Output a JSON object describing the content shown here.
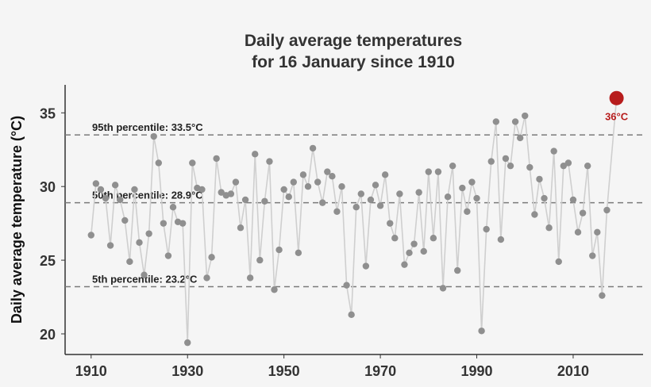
{
  "chart_data": {
    "type": "line",
    "title": [
      "Daily average temperatures",
      "for 16 January since 1910"
    ],
    "xlabel": "",
    "ylabel": "Daily average temperature (°C)",
    "xlim": [
      1904.6,
      2024.5
    ],
    "ylim": [
      18.6,
      36.9
    ],
    "xticks": [
      1910,
      1930,
      1950,
      1970,
      1990,
      2010
    ],
    "yticks": [
      20,
      25,
      30,
      35
    ],
    "grid": false,
    "colors": {
      "line": "#cfcfcf",
      "point": "#8f8f8f",
      "highlight": "#b71c1c",
      "reference": "#7a7a7a",
      "background": "#f5f5f5"
    },
    "x": [
      1910,
      1911,
      1912,
      1913,
      1914,
      1915,
      1916,
      1917,
      1918,
      1919,
      1920,
      1921,
      1922,
      1923,
      1924,
      1925,
      1926,
      1927,
      1928,
      1929,
      1930,
      1931,
      1932,
      1933,
      1934,
      1935,
      1936,
      1937,
      1938,
      1939,
      1940,
      1941,
      1942,
      1943,
      1944,
      1945,
      1946,
      1947,
      1948,
      1949,
      1950,
      1951,
      1952,
      1953,
      1954,
      1955,
      1956,
      1957,
      1958,
      1959,
      1960,
      1961,
      1962,
      1963,
      1964,
      1965,
      1966,
      1967,
      1968,
      1969,
      1970,
      1971,
      1972,
      1973,
      1974,
      1975,
      1976,
      1977,
      1978,
      1979,
      1980,
      1981,
      1982,
      1983,
      1984,
      1985,
      1986,
      1987,
      1988,
      1989,
      1990,
      1991,
      1992,
      1993,
      1994,
      1995,
      1996,
      1997,
      1998,
      1999,
      2000,
      2001,
      2002,
      2003,
      2004,
      2005,
      2006,
      2007,
      2008,
      2009,
      2010,
      2011,
      2012,
      2013,
      2014,
      2015,
      2016,
      2017,
      2019
    ],
    "y": [
      26.7,
      30.2,
      29.8,
      29.2,
      26.0,
      30.1,
      29.1,
      27.7,
      24.9,
      29.8,
      26.2,
      24.0,
      26.8,
      33.4,
      31.6,
      27.5,
      25.3,
      28.6,
      27.6,
      27.5,
      19.4,
      31.6,
      29.9,
      29.8,
      23.8,
      25.2,
      31.9,
      29.6,
      29.4,
      29.5,
      30.3,
      27.2,
      29.1,
      23.8,
      32.2,
      25.0,
      29.0,
      31.7,
      23.0,
      25.7,
      29.8,
      29.3,
      30.3,
      25.5,
      30.8,
      30.0,
      32.6,
      30.3,
      28.9,
      31.0,
      30.7,
      28.3,
      30.0,
      23.3,
      21.3,
      28.6,
      29.5,
      24.6,
      29.1,
      30.1,
      28.7,
      30.8,
      27.5,
      26.5,
      29.5,
      24.7,
      25.5,
      26.1,
      29.6,
      25.6,
      31.0,
      26.5,
      31.0,
      23.1,
      29.3,
      31.4,
      24.3,
      29.9,
      28.3,
      30.3,
      29.2,
      20.2,
      27.1,
      31.7,
      34.4,
      26.4,
      31.9,
      31.4,
      34.4,
      33.3,
      34.8,
      31.3,
      28.1,
      30.5,
      29.2,
      27.2,
      32.4,
      24.9,
      31.4,
      31.6,
      29.1,
      26.9,
      28.2,
      31.4,
      25.3,
      26.9,
      22.6,
      28.4,
      36.0
    ],
    "reference_lines": [
      {
        "label": "95th percentile:  33.5°C",
        "value": 33.5
      },
      {
        "label": "50th percentile:  28.9°C",
        "value": 28.9
      },
      {
        "label": "5th percentile:  23.2°C",
        "value": 23.2
      }
    ],
    "highlight": {
      "x": 2019,
      "y": 36.0,
      "label": "36°C"
    }
  }
}
